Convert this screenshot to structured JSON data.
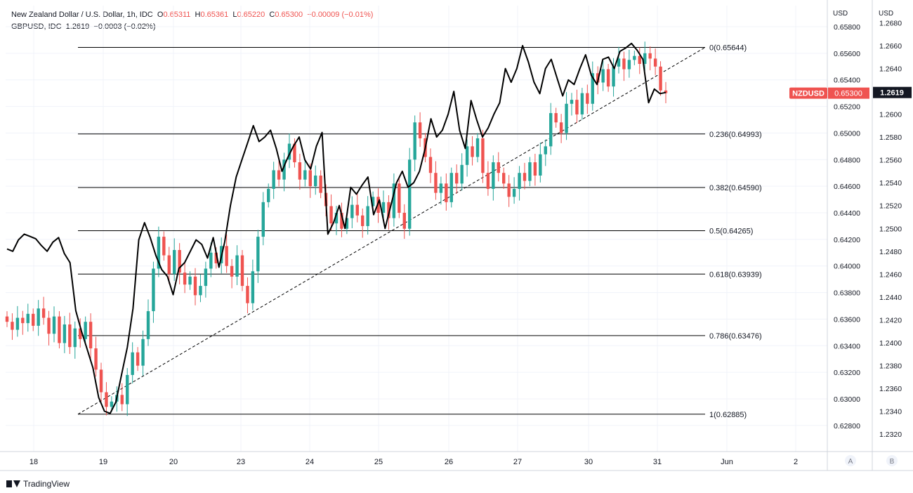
{
  "legend": {
    "symbol1": {
      "title": "New Zealand Dollar / U.S. Dollar, 1h, IDC",
      "o_label": "O",
      "o": "0.65311",
      "h_label": "H",
      "h": "0.65361",
      "l_label": "L",
      "l": "0.65220",
      "c_label": "C",
      "c": "0.65300",
      "change": "−0.00009 (−0.01%)"
    },
    "symbol2": {
      "title": "GBPUSD, IDC",
      "last": "1.2619",
      "change": "−0.0003 (−0.02%)"
    }
  },
  "axes": {
    "left_currency": "USD",
    "right_currency": "USD",
    "scale_a_button": "A",
    "scale_b_button": "B"
  },
  "badges": {
    "symbol_name": "NZDUSD",
    "symbol_price": "0.65300",
    "compare_price": "1.2619"
  },
  "footer": {
    "brand": "TradingView"
  },
  "colors": {
    "up": "#26a69a",
    "down": "#ef5350",
    "compare_line": "#000000",
    "fib_line": "#000000",
    "badge_red": "#ef5350",
    "badge_black": "#131722"
  },
  "chart_data": {
    "type": "candlestick",
    "price_axis_1": {
      "ylim": [
        0.627,
        0.659
      ],
      "ticks": [
        "0.65800",
        "0.65600",
        "0.65400",
        "0.65200",
        "0.65000",
        "0.64800",
        "0.64600",
        "0.64400",
        "0.64200",
        "0.64000",
        "0.63800",
        "0.63600",
        "0.63400",
        "0.63200",
        "0.63000",
        "0.62800"
      ]
    },
    "price_axis_2": {
      "ylim": [
        1.2313,
        1.269
      ],
      "ticks": [
        "1.2680",
        "1.2660",
        "1.2640",
        "1.2620",
        "1.2600",
        "1.2580",
        "1.2560",
        "1.2540",
        "1.2520",
        "1.2500",
        "1.2480",
        "1.2460",
        "1.2440",
        "1.2420",
        "1.2400",
        "1.2380",
        "1.2360",
        "1.2340",
        "1.2320"
      ]
    },
    "x_ticks": [
      "18",
      "19",
      "20",
      "23",
      "24",
      "25",
      "26",
      "27",
      "30",
      "31",
      "Jun",
      "2"
    ],
    "fibonacci": [
      {
        "level": "0",
        "price": "0.65644"
      },
      {
        "level": "0.236",
        "price": "0.64993"
      },
      {
        "level": "0.382",
        "price": "0.64590"
      },
      {
        "level": "0.5",
        "price": "0.64265"
      },
      {
        "level": "0.618",
        "price": "0.63939"
      },
      {
        "level": "0.786",
        "price": "0.63476"
      },
      {
        "level": "1",
        "price": "0.62885"
      }
    ],
    "trendline": {
      "from": {
        "day": "19",
        "price": 0.62885
      },
      "to": {
        "day": "Jun",
        "price": 0.65644
      }
    },
    "nzdusd_close_path": [
      0.6358,
      0.6352,
      0.6361,
      0.6357,
      0.6364,
      0.6355,
      0.6368,
      0.6361,
      0.6349,
      0.6362,
      0.6342,
      0.6356,
      0.6339,
      0.6353,
      0.6345,
      0.6358,
      0.6338,
      0.6322,
      0.6305,
      0.6294,
      0.6298,
      0.6303,
      0.6296,
      0.6318,
      0.6335,
      0.6325,
      0.6345,
      0.6366,
      0.6398,
      0.6422,
      0.6408,
      0.6394,
      0.6412,
      0.6395,
      0.6386,
      0.6392,
      0.6378,
      0.6385,
      0.6398,
      0.641,
      0.6402,
      0.6415,
      0.64,
      0.6392,
      0.6408,
      0.6385,
      0.6372,
      0.6396,
      0.6422,
      0.6448,
      0.6458,
      0.6472,
      0.6465,
      0.648,
      0.6492,
      0.6478,
      0.6465,
      0.6472,
      0.646,
      0.6468,
      0.6455,
      0.6445,
      0.6432,
      0.644,
      0.6428,
      0.6436,
      0.6446,
      0.6438,
      0.643,
      0.6445,
      0.6452,
      0.644,
      0.6448,
      0.6436,
      0.6462,
      0.644,
      0.6428,
      0.648,
      0.6508,
      0.6496,
      0.6482,
      0.647,
      0.6455,
      0.6462,
      0.6448,
      0.647,
      0.6462,
      0.6476,
      0.649,
      0.6482,
      0.6496,
      0.647,
      0.6458,
      0.6478,
      0.647,
      0.6462,
      0.6452,
      0.6458,
      0.647,
      0.6464,
      0.6478,
      0.6468,
      0.6484,
      0.649,
      0.6515,
      0.6508,
      0.65,
      0.6522,
      0.6525,
      0.6514,
      0.653,
      0.6522,
      0.6545,
      0.6538,
      0.6548,
      0.6535,
      0.655,
      0.6556,
      0.6548,
      0.6555,
      0.6558,
      0.6552,
      0.656,
      0.6556,
      0.655,
      0.6532,
      0.653
    ],
    "gbpusd_path": [
      1.2482,
      1.248,
      1.249,
      1.2495,
      1.2493,
      1.2491,
      1.2485,
      1.248,
      1.2488,
      1.2492,
      1.2478,
      1.247,
      1.2428,
      1.241,
      1.2394,
      1.2378,
      1.2352,
      1.234,
      1.2338,
      1.2348,
      1.2372,
      1.2396,
      1.243,
      1.249,
      1.2505,
      1.2492,
      1.2476,
      1.2464,
      1.2458,
      1.2442,
      1.2465,
      1.247,
      1.248,
      1.249,
      1.2486,
      1.2474,
      1.2492,
      1.2466,
      1.2488,
      1.252,
      1.2545,
      1.256,
      1.2575,
      1.259,
      1.2576,
      1.258,
      1.2586,
      1.257,
      1.255,
      1.2562,
      1.2572,
      1.258,
      1.256,
      1.2552,
      1.2572,
      1.2584,
      1.2495,
      1.2505,
      1.252,
      1.25,
      1.2536,
      1.253,
      1.2538,
      1.2545,
      1.2512,
      1.2525,
      1.25,
      1.252,
      1.254,
      1.255,
      1.2536,
      1.254,
      1.255,
      1.257,
      1.2596,
      1.258,
      1.2586,
      1.26,
      1.262,
      1.2586,
      1.257,
      1.2612,
      1.2595,
      1.258,
      1.2588,
      1.26,
      1.261,
      1.264,
      1.2628,
      1.264,
      1.266,
      1.2646,
      1.2628,
      1.2618,
      1.264,
      1.2648,
      1.2632,
      1.2616,
      1.263,
      1.2626,
      1.264,
      1.2652,
      1.2634,
      1.2626,
      1.2648,
      1.265,
      1.264,
      1.2655,
      1.2658,
      1.2662,
      1.2656,
      1.2648,
      1.261,
      1.2622,
      1.2618,
      1.2619
    ]
  }
}
